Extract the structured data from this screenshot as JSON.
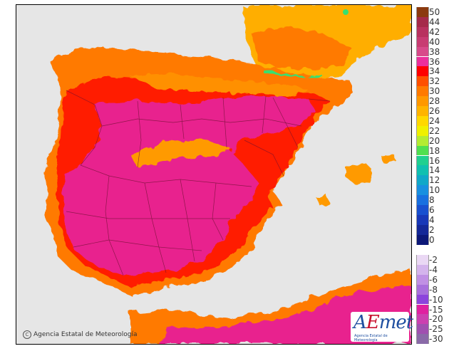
{
  "map": {
    "sea_color": "#e6e6e6",
    "land_regions": [
      {
        "name": "iberian-peninsula",
        "color": "#e8238e"
      },
      {
        "name": "north-coast-band",
        "color": "#ff7a00"
      },
      {
        "name": "france-south",
        "color": "#ffae00"
      },
      {
        "name": "north-africa",
        "color": "#e8238e"
      }
    ],
    "pyrenees_color": "#38e070"
  },
  "copyright": {
    "symbol": "C",
    "text": "Agencia Estatal de Meteorología"
  },
  "logo": {
    "word_a": "A",
    "word_e": "E",
    "word_rest": "met",
    "subtitle": "Agencia Estatal de Meteorología"
  },
  "legend": {
    "upper_scale": [
      {
        "label": "50",
        "color": "#8b3a0f"
      },
      {
        "label": "44",
        "color": "#a52a4a"
      },
      {
        "label": "42",
        "color": "#b8325f"
      },
      {
        "label": "40",
        "color": "#c83c72"
      },
      {
        "label": "38",
        "color": "#d84a8a"
      },
      {
        "label": "36",
        "color": "#ec2f9c"
      },
      {
        "label": "34",
        "color": "#ff0000"
      },
      {
        "label": "32",
        "color": "#ff5000"
      },
      {
        "label": "30",
        "color": "#ff7a00"
      },
      {
        "label": "28",
        "color": "#ff9800"
      },
      {
        "label": "26",
        "color": "#ffb400"
      },
      {
        "label": "24",
        "color": "#ffd800"
      },
      {
        "label": "22",
        "color": "#f0f000"
      },
      {
        "label": "20",
        "color": "#b4ec32"
      },
      {
        "label": "18",
        "color": "#50e050"
      },
      {
        "label": "16",
        "color": "#20d090"
      },
      {
        "label": "14",
        "color": "#10c0b0"
      },
      {
        "label": "12",
        "color": "#10a8c8"
      },
      {
        "label": "10",
        "color": "#1890e0"
      },
      {
        "label": "8",
        "color": "#1870e0"
      },
      {
        "label": "6",
        "color": "#1850d0"
      },
      {
        "label": "4",
        "color": "#1838b8"
      },
      {
        "label": "2",
        "color": "#142898"
      },
      {
        "label": "0",
        "color": "#0c1878"
      }
    ],
    "lower_scale": [
      {
        "label": "-2",
        "color": "#ead8f4"
      },
      {
        "label": "-4",
        "color": "#d4b4ec"
      },
      {
        "label": "-6",
        "color": "#c090e4"
      },
      {
        "label": "-8",
        "color": "#a870dc"
      },
      {
        "label": "-10",
        "color": "#8c44dc"
      },
      {
        "label": "-15",
        "color": "#e020a0"
      },
      {
        "label": "-20",
        "color": "#cc40b0"
      },
      {
        "label": "-25",
        "color": "#a050b0"
      },
      {
        "label": "-30",
        "color": "#8a6aa8"
      }
    ]
  }
}
